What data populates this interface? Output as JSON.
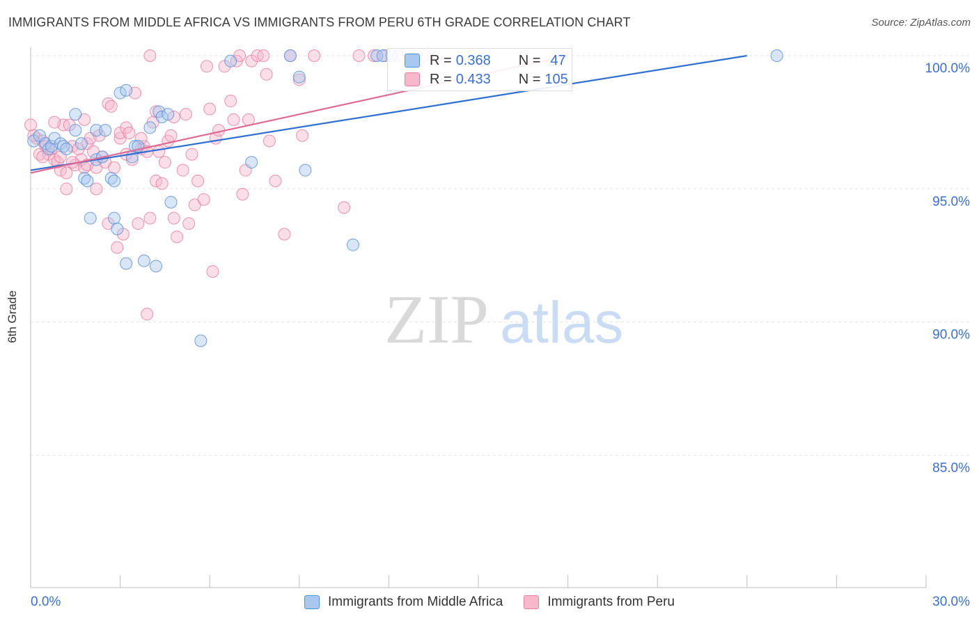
{
  "title": "IMMIGRANTS FROM MIDDLE AFRICA VS IMMIGRANTS FROM PERU 6TH GRADE CORRELATION CHART",
  "source": "Source: ZipAtlas.com",
  "watermark": {
    "zip": "ZIP",
    "atlas": "atlas"
  },
  "colors": {
    "blue_fill": "#a8c8f0",
    "blue_stroke": "#5b8fd6",
    "blue_line": "#2f6fcf",
    "pink_fill": "#f7b8cc",
    "pink_stroke": "#e57fa2",
    "pink_line": "#e06a94",
    "tick_text": "#3a6fd0",
    "grid": "#e3e3e3"
  },
  "legend": {
    "rows": [
      {
        "r_label": "R =",
        "r_value": "0.368",
        "n_label": "N =",
        "n_value": "47"
      },
      {
        "r_label": "R =",
        "r_value": "0.433",
        "n_label": "N =",
        "n_value": "105"
      }
    ]
  },
  "chart_data": {
    "type": "scatter",
    "title": "IMMIGRANTS FROM MIDDLE AFRICA VS IMMIGRANTS FROM PERU 6TH GRADE CORRELATION CHART",
    "xlabel": "",
    "ylabel": "6th Grade",
    "xlim": [
      0,
      30
    ],
    "ylim": [
      80.5,
      100.5
    ],
    "x_tick_labels": [
      "0.0%",
      "30.0%"
    ],
    "y_ticks": [
      85,
      90,
      95,
      100
    ],
    "y_tick_labels": [
      "85.0%",
      "90.0%",
      "95.0%",
      "100.0%"
    ],
    "grid": true,
    "legend_position": "top-center",
    "series": [
      {
        "name": "Immigrants from Middle Africa",
        "R": 0.368,
        "N": 47,
        "trend": {
          "x": [
            0,
            24
          ],
          "y": [
            95.7,
            100.0
          ]
        },
        "points": [
          [
            0.1,
            96.8
          ],
          [
            0.3,
            97.0
          ],
          [
            0.5,
            96.7
          ],
          [
            0.6,
            96.5
          ],
          [
            0.7,
            96.6
          ],
          [
            0.8,
            96.9
          ],
          [
            1.0,
            96.7
          ],
          [
            1.1,
            96.6
          ],
          [
            1.2,
            96.5
          ],
          [
            1.5,
            97.2
          ],
          [
            1.5,
            97.8
          ],
          [
            1.7,
            96.7
          ],
          [
            1.8,
            95.4
          ],
          [
            1.9,
            95.3
          ],
          [
            2.0,
            93.9
          ],
          [
            2.2,
            97.2
          ],
          [
            2.2,
            96.1
          ],
          [
            2.4,
            96.2
          ],
          [
            2.5,
            97.2
          ],
          [
            2.7,
            95.4
          ],
          [
            2.8,
            95.3
          ],
          [
            2.8,
            93.9
          ],
          [
            2.9,
            93.5
          ],
          [
            3.0,
            98.6
          ],
          [
            3.2,
            98.7
          ],
          [
            3.2,
            92.2
          ],
          [
            3.4,
            96.2
          ],
          [
            3.5,
            96.6
          ],
          [
            3.6,
            96.6
          ],
          [
            3.8,
            92.3
          ],
          [
            4.0,
            97.3
          ],
          [
            4.2,
            92.1
          ],
          [
            4.3,
            97.9
          ],
          [
            4.4,
            97.7
          ],
          [
            4.6,
            97.8
          ],
          [
            4.7,
            94.5
          ],
          [
            5.7,
            89.3
          ],
          [
            6.7,
            99.8
          ],
          [
            7.4,
            96.0
          ],
          [
            8.7,
            100.0
          ],
          [
            9.0,
            99.2
          ],
          [
            9.2,
            95.7
          ],
          [
            10.8,
            92.9
          ],
          [
            11.6,
            100.0
          ],
          [
            11.8,
            100.0
          ],
          [
            12.1,
            100.0
          ],
          [
            25.0,
            100.0
          ]
        ]
      },
      {
        "name": "Immigrants from Peru",
        "R": 0.433,
        "N": 105,
        "trend": {
          "x": [
            0,
            18
          ],
          "y": [
            95.6,
            100.0
          ]
        },
        "points": [
          [
            0.0,
            97.4
          ],
          [
            0.2,
            96.9
          ],
          [
            0.3,
            96.3
          ],
          [
            0.4,
            96.8
          ],
          [
            0.5,
            96.6
          ],
          [
            0.6,
            96.3
          ],
          [
            0.7,
            96.5
          ],
          [
            0.8,
            96.1
          ],
          [
            0.9,
            96.0
          ],
          [
            1.0,
            96.2
          ],
          [
            1.0,
            95.7
          ],
          [
            1.1,
            97.4
          ],
          [
            1.2,
            95.0
          ],
          [
            1.2,
            95.6
          ],
          [
            1.3,
            97.4
          ],
          [
            1.4,
            96.6
          ],
          [
            1.5,
            95.9
          ],
          [
            1.6,
            96.5
          ],
          [
            1.7,
            96.1
          ],
          [
            1.8,
            95.8
          ],
          [
            1.8,
            97.6
          ],
          [
            1.9,
            96.7
          ],
          [
            1.9,
            95.9
          ],
          [
            2.0,
            96.9
          ],
          [
            2.1,
            96.4
          ],
          [
            2.2,
            95.8
          ],
          [
            2.2,
            95.0
          ],
          [
            2.4,
            96.2
          ],
          [
            2.5,
            96.0
          ],
          [
            2.6,
            98.2
          ],
          [
            2.6,
            93.7
          ],
          [
            2.7,
            98.1
          ],
          [
            2.8,
            95.8
          ],
          [
            2.9,
            92.8
          ],
          [
            3.0,
            96.9
          ],
          [
            3.0,
            97.1
          ],
          [
            3.1,
            93.3
          ],
          [
            3.2,
            96.3
          ],
          [
            3.2,
            97.3
          ],
          [
            3.3,
            97.1
          ],
          [
            3.4,
            96.1
          ],
          [
            3.5,
            98.6
          ],
          [
            3.6,
            93.7
          ],
          [
            3.7,
            96.5
          ],
          [
            3.8,
            96.6
          ],
          [
            3.9,
            96.4
          ],
          [
            3.9,
            90.3
          ],
          [
            4.0,
            100.0
          ],
          [
            4.0,
            93.9
          ],
          [
            4.1,
            97.5
          ],
          [
            4.2,
            97.9
          ],
          [
            4.2,
            95.3
          ],
          [
            4.3,
            96.4
          ],
          [
            4.4,
            95.2
          ],
          [
            4.5,
            96.0
          ],
          [
            4.6,
            96.8
          ],
          [
            4.8,
            97.7
          ],
          [
            4.8,
            93.9
          ],
          [
            4.9,
            93.2
          ],
          [
            5.1,
            95.7
          ],
          [
            5.2,
            97.8
          ],
          [
            5.3,
            93.7
          ],
          [
            5.4,
            96.3
          ],
          [
            5.5,
            94.4
          ],
          [
            5.6,
            95.3
          ],
          [
            5.8,
            94.6
          ],
          [
            5.9,
            99.6
          ],
          [
            6.0,
            98.0
          ],
          [
            6.1,
            91.9
          ],
          [
            6.2,
            96.9
          ],
          [
            6.5,
            99.6
          ],
          [
            6.7,
            98.3
          ],
          [
            6.8,
            97.6
          ],
          [
            6.9,
            99.8
          ],
          [
            7.0,
            100.0
          ],
          [
            7.1,
            94.8
          ],
          [
            7.2,
            95.7
          ],
          [
            7.4,
            99.8
          ],
          [
            7.6,
            100.0
          ],
          [
            7.8,
            100.0
          ],
          [
            7.9,
            99.3
          ],
          [
            8.0,
            96.8
          ],
          [
            8.2,
            95.3
          ],
          [
            8.5,
            93.3
          ],
          [
            8.7,
            100.0
          ],
          [
            9.0,
            99.1
          ],
          [
            9.1,
            97.0
          ],
          [
            9.5,
            100.0
          ],
          [
            10.5,
            94.3
          ],
          [
            11.0,
            100.0
          ],
          [
            11.5,
            100.0
          ],
          [
            11.9,
            100.0
          ],
          [
            12.3,
            100.0
          ],
          [
            12.8,
            100.0
          ],
          [
            13.2,
            100.0
          ],
          [
            13.5,
            99.9
          ],
          [
            0.1,
            97.0
          ],
          [
            0.4,
            96.2
          ],
          [
            0.8,
            97.5
          ],
          [
            1.4,
            96.0
          ],
          [
            2.3,
            97.0
          ],
          [
            3.7,
            96.9
          ],
          [
            4.7,
            97.0
          ],
          [
            6.3,
            97.2
          ],
          [
            7.3,
            97.6
          ]
        ]
      }
    ]
  }
}
